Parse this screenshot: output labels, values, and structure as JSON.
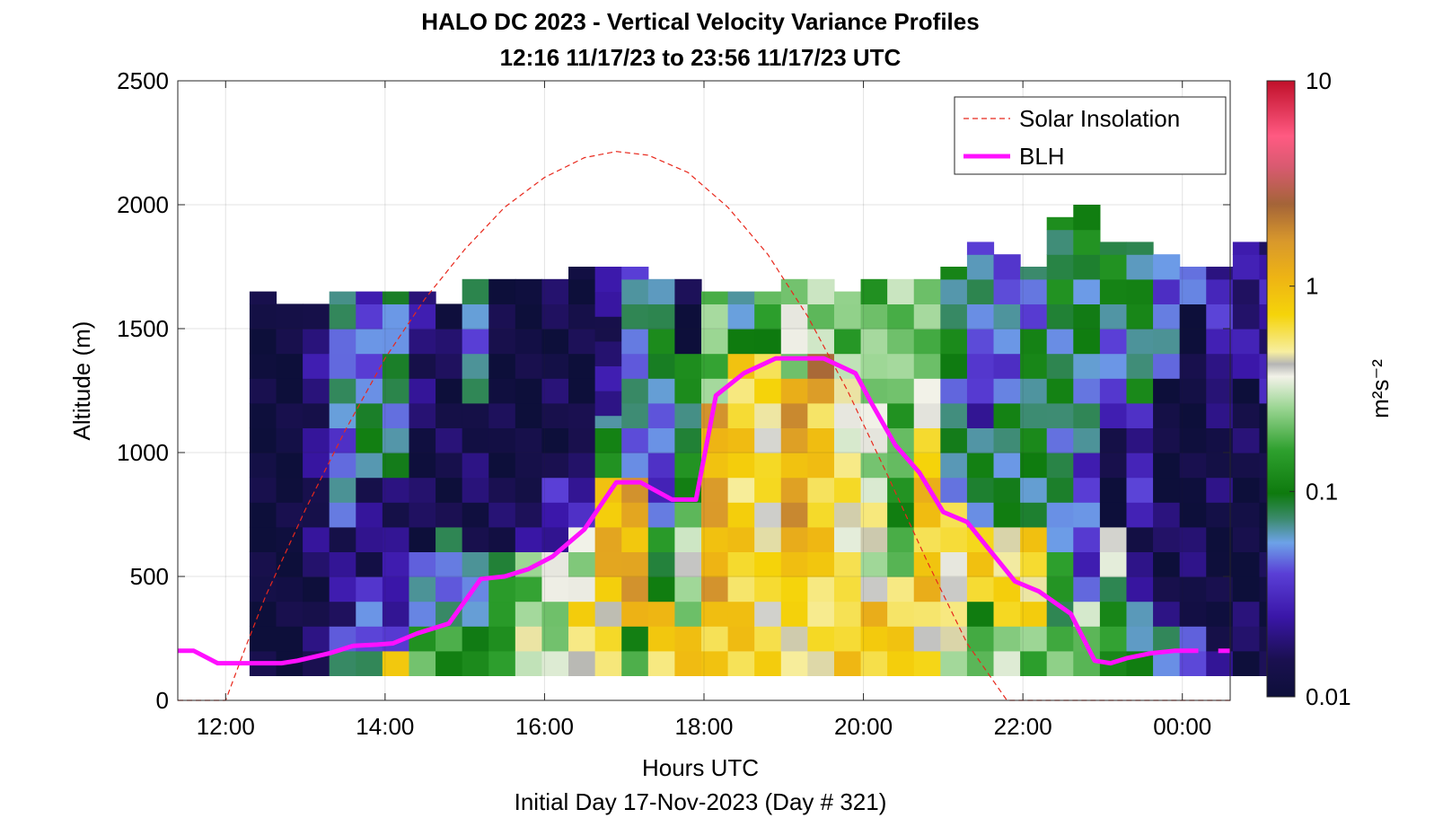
{
  "chart_data": {
    "type": "heatmap",
    "title": "HALO DC 2023 - Vertical Velocity Variance Profiles",
    "subtitle": "12:16 11/17/23 to 23:56 11/17/23  UTC",
    "xlabel": "Hours UTC",
    "x_sublabel": "Initial Day 17-Nov-2023 (Day # 321)",
    "ylabel": "Altitude (m)",
    "x_ticks": [
      "12:00",
      "14:00",
      "16:00",
      "18:00",
      "20:00",
      "22:00",
      "00:00"
    ],
    "x_tick_values": [
      12,
      14,
      16,
      18,
      20,
      22,
      24
    ],
    "xlim": [
      11.4,
      24.6
    ],
    "y_ticks": [
      "0",
      "500",
      "1000",
      "1500",
      "2000",
      "2500"
    ],
    "y_tick_values": [
      0,
      500,
      1000,
      1500,
      2000,
      2500
    ],
    "ylim": [
      0,
      2500
    ],
    "grid": true,
    "legend_position": "top-right",
    "colorbar": {
      "label": "m²s⁻²",
      "scale": "log",
      "ticks": [
        "10",
        "1",
        "0.1",
        "0.01"
      ],
      "tick_values": [
        10,
        1,
        0.1,
        0.01
      ],
      "range": [
        0.01,
        10
      ]
    },
    "heatmap": {
      "time_start": 12.3,
      "time_step": 0.3333,
      "alt_bottom": 100,
      "alt_step": 100,
      "value_unit": "m^2 s^-2",
      "columns": [
        {
          "top": 1650,
          "ranges": [
            [
              100,
              1650,
              0.011
            ]
          ]
        },
        {
          "top": 1600,
          "ranges": [
            [
              100,
              1600,
              0.011
            ]
          ]
        },
        {
          "top": 1600,
          "ranges": [
            [
              100,
              600,
              0.015
            ],
            [
              600,
              1000,
              0.018
            ],
            [
              1000,
              1600,
              0.02
            ]
          ]
        },
        {
          "top": 1650,
          "ranges": [
            [
              100,
              300,
              0.06
            ],
            [
              300,
              700,
              0.02
            ],
            [
              700,
              1200,
              0.05
            ],
            [
              1200,
              1650,
              0.06
            ]
          ]
        },
        {
          "top": 1650,
          "ranges": [
            [
              100,
              200,
              0.12
            ],
            [
              200,
              500,
              0.04
            ],
            [
              500,
              900,
              0.018
            ],
            [
              900,
              1300,
              0.08
            ],
            [
              1300,
              1650,
              0.04
            ]
          ]
        },
        {
          "top": 1650,
          "ranges": [
            [
              100,
              200,
              0.7
            ],
            [
              200,
              500,
              0.03
            ],
            [
              500,
              900,
              0.02
            ],
            [
              900,
              1650,
              0.07
            ]
          ]
        },
        {
          "top": 1650,
          "ranges": [
            [
              100,
              300,
              0.2
            ],
            [
              300,
              600,
              0.05
            ],
            [
              600,
              1200,
              0.014
            ],
            [
              1200,
              1650,
              0.02
            ]
          ]
        },
        {
          "top": 1600,
          "ranges": [
            [
              100,
              300,
              0.15
            ],
            [
              300,
              700,
              0.06
            ],
            [
              700,
              1600,
              0.014
            ]
          ]
        },
        {
          "top": 1700,
          "ranges": [
            [
              100,
              400,
              0.09
            ],
            [
              400,
              600,
              0.05
            ],
            [
              600,
              1200,
              0.016
            ],
            [
              1200,
              1700,
              0.06
            ]
          ]
        },
        {
          "top": 1700,
          "ranges": [
            [
              100,
              300,
              0.18
            ],
            [
              300,
              600,
              0.12
            ],
            [
              600,
              900,
              0.014
            ],
            [
              900,
              1700,
              0.012
            ]
          ]
        },
        {
          "top": 1700,
          "ranges": [
            [
              100,
              300,
              0.35
            ],
            [
              300,
              600,
              0.25
            ],
            [
              600,
              900,
              0.018
            ],
            [
              900,
              1700,
              0.011
            ]
          ]
        },
        {
          "top": 1700,
          "ranges": [
            [
              100,
              300,
              0.25
            ],
            [
              300,
              600,
              0.3
            ],
            [
              600,
              900,
              0.03
            ],
            [
              900,
              1700,
              0.014
            ]
          ]
        },
        {
          "top": 1750,
          "ranges": [
            [
              100,
              400,
              0.6
            ],
            [
              400,
              700,
              0.35
            ],
            [
              700,
              1000,
              0.025
            ],
            [
              1000,
              1750,
              0.012
            ]
          ]
        },
        {
          "top": 1750,
          "ranges": [
            [
              100,
              400,
              0.5
            ],
            [
              400,
              900,
              1.1
            ],
            [
              900,
              1150,
              0.1
            ],
            [
              1150,
              1750,
              0.02
            ]
          ]
        },
        {
          "top": 1750,
          "ranges": [
            [
              100,
              300,
              0.15
            ],
            [
              300,
              900,
              1.3
            ],
            [
              900,
              1750,
              0.06
            ]
          ]
        },
        {
          "top": 1700,
          "ranges": [
            [
              100,
              400,
              0.8
            ],
            [
              400,
              700,
              0.12
            ],
            [
              700,
              1200,
              0.04
            ],
            [
              1200,
              1700,
              0.09
            ]
          ]
        },
        {
          "top": 1700,
          "ranges": [
            [
              100,
              300,
              0.8
            ],
            [
              300,
              800,
              0.3
            ],
            [
              800,
              1400,
              0.1
            ],
            [
              1400,
              1700,
              0.012
            ]
          ]
        },
        {
          "top": 1650,
          "ranges": [
            [
              100,
              400,
              0.9
            ],
            [
              400,
              1200,
              1.3
            ],
            [
              1200,
              1500,
              0.25
            ],
            [
              1500,
              1650,
              0.2
            ]
          ]
        },
        {
          "top": 1650,
          "ranges": [
            [
              100,
              500,
              0.8
            ],
            [
              500,
              1400,
              0.75
            ],
            [
              1400,
              1650,
              0.08
            ]
          ]
        },
        {
          "top": 1650,
          "ranges": [
            [
              100,
              500,
              0.6
            ],
            [
              500,
              1400,
              0.55
            ],
            [
              1400,
              1650,
              0.15
            ]
          ]
        },
        {
          "top": 1700,
          "ranges": [
            [
              100,
              500,
              0.6
            ],
            [
              500,
              1300,
              1.4
            ],
            [
              1300,
              1700,
              0.3
            ]
          ]
        },
        {
          "top": 1700,
          "ranges": [
            [
              100,
              400,
              0.5
            ],
            [
              400,
              1200,
              0.8
            ],
            [
              1200,
              1400,
              1.8
            ],
            [
              1400,
              1700,
              0.3
            ]
          ]
        },
        {
          "top": 1650,
          "ranges": [
            [
              100,
              400,
              0.8
            ],
            [
              400,
              1100,
              0.5
            ],
            [
              1100,
              1400,
              0.35
            ],
            [
              1400,
              1650,
              0.2
            ]
          ]
        },
        {
          "top": 1700,
          "ranges": [
            [
              100,
              400,
              0.9
            ],
            [
              400,
              900,
              0.4
            ],
            [
              900,
              1400,
              0.3
            ],
            [
              1400,
              1700,
              0.2
            ]
          ]
        },
        {
          "top": 1700,
          "ranges": [
            [
              100,
              500,
              0.7
            ],
            [
              500,
              1000,
              0.15
            ],
            [
              1000,
              1400,
              0.2
            ],
            [
              1400,
              1700,
              0.25
            ]
          ]
        },
        {
          "top": 1700,
          "ranges": [
            [
              100,
              400,
              0.6
            ],
            [
              400,
              1100,
              0.9
            ],
            [
              1100,
              1400,
              0.3
            ],
            [
              1400,
              1700,
              0.2
            ]
          ]
        },
        {
          "top": 1750,
          "ranges": [
            [
              100,
              400,
              0.4
            ],
            [
              400,
              800,
              0.5
            ],
            [
              800,
              1300,
              0.07
            ],
            [
              1300,
              1750,
              0.09
            ]
          ]
        },
        {
          "top": 1850,
          "ranges": [
            [
              100,
              400,
              0.15
            ],
            [
              400,
              700,
              0.7
            ],
            [
              700,
              1100,
              0.08
            ],
            [
              1100,
              1400,
              0.03
            ],
            [
              1400,
              1850,
              0.06
            ]
          ]
        },
        {
          "top": 1800,
          "ranges": [
            [
              100,
              300,
              0.35
            ],
            [
              300,
              700,
              0.6
            ],
            [
              700,
              1200,
              0.08
            ],
            [
              1200,
              1800,
              0.05
            ]
          ]
        },
        {
          "top": 1750,
          "ranges": [
            [
              100,
              300,
              0.2
            ],
            [
              300,
              700,
              0.7
            ],
            [
              700,
              1500,
              0.09
            ],
            [
              1500,
              1750,
              0.055
            ]
          ]
        },
        {
          "top": 1950,
          "ranges": [
            [
              100,
              300,
              0.18
            ],
            [
              300,
              600,
              0.12
            ],
            [
              600,
              1100,
              0.07
            ],
            [
              1100,
              1600,
              0.08
            ],
            [
              1600,
              1950,
              0.1
            ]
          ]
        },
        {
          "top": 2000,
          "ranges": [
            [
              100,
              400,
              0.25
            ],
            [
              400,
              1000,
              0.04
            ],
            [
              1000,
              1300,
              0.06
            ],
            [
              1300,
              1700,
              0.08
            ],
            [
              1700,
              2000,
              0.1
            ]
          ]
        },
        {
          "top": 1850,
          "ranges": [
            [
              100,
              500,
              0.12
            ],
            [
              500,
              700,
              0.3
            ],
            [
              700,
              1100,
              0.011
            ],
            [
              1100,
              1500,
              0.04
            ],
            [
              1500,
              1850,
              0.1
            ]
          ]
        },
        {
          "top": 1850,
          "ranges": [
            [
              100,
              400,
              0.08
            ],
            [
              400,
              700,
              0.018
            ],
            [
              700,
              1200,
              0.03
            ],
            [
              1200,
              1850,
              0.09
            ]
          ]
        },
        {
          "top": 1800,
          "ranges": [
            [
              100,
              300,
              0.08
            ],
            [
              300,
              800,
              0.015
            ],
            [
              800,
              1300,
              0.011
            ],
            [
              1300,
              1800,
              0.05
            ]
          ]
        },
        {
          "top": 1750,
          "ranges": [
            [
              100,
              300,
              0.035
            ],
            [
              300,
              700,
              0.016
            ],
            [
              700,
              1600,
              0.011
            ],
            [
              1600,
              1750,
              0.04
            ]
          ]
        },
        {
          "top": 1750,
          "ranges": [
            [
              100,
              300,
              0.02
            ],
            [
              300,
              800,
              0.011
            ],
            [
              800,
              1300,
              0.016
            ],
            [
              1300,
              1750,
              0.03
            ]
          ]
        },
        {
          "top": 1850,
          "ranges": [
            [
              100,
              400,
              0.015
            ],
            [
              400,
              800,
              0.011
            ],
            [
              800,
              1300,
              0.014
            ],
            [
              1300,
              1850,
              0.022
            ]
          ]
        },
        {
          "top": 1850,
          "ranges": [
            [
              100,
              600,
              0.012
            ],
            [
              600,
              1200,
              0.011
            ],
            [
              1200,
              1850,
              0.025
            ]
          ]
        }
      ]
    },
    "series": [
      {
        "name": "Solar Insolation",
        "style": "dashed",
        "color": "#e8281c",
        "x": [
          11.4,
          11.9,
          12.0,
          12.25,
          12.5,
          13.0,
          13.5,
          14.0,
          14.5,
          15.0,
          15.5,
          16.0,
          16.5,
          16.9,
          17.3,
          17.8,
          18.3,
          18.8,
          19.3,
          19.8,
          20.3,
          20.8,
          21.3,
          21.8,
          22.0,
          24.6
        ],
        "y": [
          0,
          0,
          0,
          215,
          420,
          770,
          1090,
          1380,
          1620,
          1820,
          1990,
          2110,
          2190,
          2215,
          2200,
          2130,
          1990,
          1800,
          1550,
          1250,
          910,
          560,
          230,
          0,
          0,
          0
        ]
      },
      {
        "name": "BLH",
        "style": "solid",
        "color": "#ff10ff",
        "x": [
          11.4,
          11.6,
          11.9,
          12.3,
          12.7,
          12.9,
          13.3,
          13.6,
          13.9,
          14.1,
          14.4,
          14.8,
          15.2,
          15.5,
          15.8,
          16.1,
          16.5,
          16.9,
          17.2,
          17.6,
          17.9,
          18.15,
          18.5,
          18.9,
          19.2,
          19.5,
          19.9,
          20.1,
          20.4,
          20.7,
          21.0,
          21.3,
          21.6,
          21.9,
          22.2,
          22.6,
          22.9,
          23.1,
          23.3,
          23.6,
          23.9,
          24.2
        ],
        "y": [
          200,
          200,
          150,
          150,
          150,
          160,
          190,
          220,
          225,
          230,
          270,
          310,
          490,
          500,
          530,
          580,
          690,
          880,
          880,
          810,
          810,
          1230,
          1320,
          1380,
          1380,
          1380,
          1320,
          1200,
          1030,
          920,
          760,
          720,
          600,
          480,
          440,
          350,
          160,
          150,
          170,
          190,
          200,
          200
        ]
      },
      {
        "name": "",
        "style": "solid",
        "color": "#ff10ff",
        "x": [
          24.45,
          24.6
        ],
        "y": [
          200,
          200
        ]
      }
    ]
  }
}
